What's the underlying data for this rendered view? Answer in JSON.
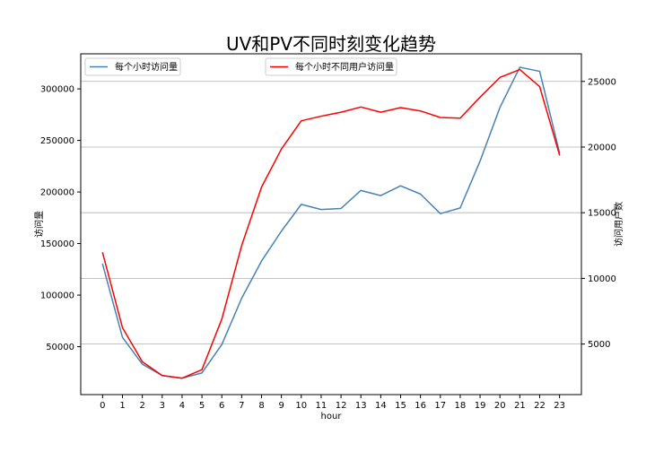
{
  "chart_data": {
    "type": "line",
    "title": "UV和PV不同时刻变化趋势",
    "xlabel": "hour",
    "ylabel_left": "访问量",
    "ylabel_right": "访问用户数",
    "x": [
      0,
      1,
      2,
      3,
      4,
      5,
      6,
      7,
      8,
      9,
      10,
      11,
      12,
      13,
      14,
      15,
      16,
      17,
      18,
      19,
      20,
      21,
      22,
      23
    ],
    "x_tick_labels": [
      "0",
      "1",
      "2",
      "3",
      "4",
      "5",
      "6",
      "7",
      "8",
      "9",
      "10",
      "11",
      "12",
      "13",
      "14",
      "15",
      "16",
      "17",
      "18",
      "19",
      "20",
      "21",
      "22",
      "23"
    ],
    "xlim": [
      -1.1,
      24.1
    ],
    "left_axis": {
      "ylim": [
        3500,
        334000
      ],
      "ticks": [
        50000,
        100000,
        150000,
        200000,
        250000,
        300000
      ],
      "tick_labels": [
        "50000",
        "100000",
        "150000",
        "200000",
        "250000",
        "300000"
      ]
    },
    "right_axis": {
      "ylim": [
        1150,
        27100
      ],
      "ticks": [
        5000,
        10000,
        15000,
        20000,
        25000
      ],
      "tick_labels": [
        "5000",
        "10000",
        "15000",
        "20000",
        "25000"
      ]
    },
    "grid": "horizontal lines at right-axis ticks",
    "series": [
      {
        "name": "每个小时访问量",
        "axis": "left",
        "color": "#4682b4",
        "legend_position": "upper left",
        "values": [
          130000,
          59000,
          33000,
          22000,
          19500,
          24500,
          52000,
          97000,
          133000,
          162000,
          188000,
          183000,
          184000,
          201500,
          196500,
          206000,
          198000,
          179000,
          184500,
          230000,
          282000,
          321000,
          317000,
          238000
        ]
      },
      {
        "name": "每个小时不同用户访问量",
        "axis": "right",
        "color": "#ff0000",
        "legend_position": "upper center",
        "values": [
          11950,
          6250,
          3650,
          2600,
          2400,
          3050,
          6900,
          12500,
          16950,
          19850,
          22000,
          22350,
          22650,
          23050,
          22650,
          23000,
          22750,
          22250,
          22200,
          23800,
          25300,
          25900,
          24600,
          19400
        ]
      }
    ]
  }
}
